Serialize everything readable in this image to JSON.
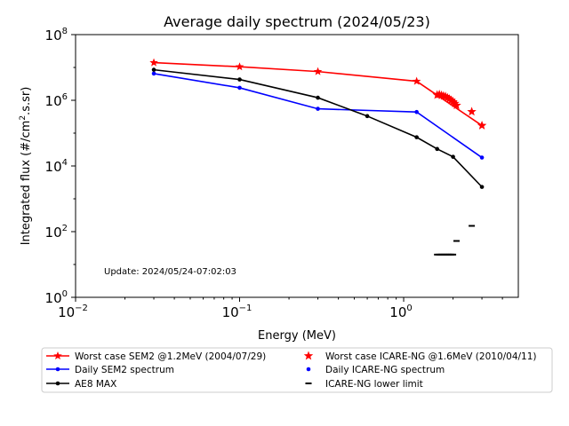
{
  "chart_data": {
    "type": "line",
    "title": "Average daily spectrum (2024/05/23)",
    "xlabel": "Energy (MeV)",
    "ylabel_main": "Integrated flux (#/cm",
    "ylabel_sup": "2",
    "ylabel_tail": ".s.sr)",
    "xscale": "log",
    "yscale": "log",
    "xlim": [
      0.01,
      5
    ],
    "ylim": [
      1,
      100000000
    ],
    "x_ticks": [
      {
        "value": 0.01,
        "base": "10",
        "exp": "−2"
      },
      {
        "value": 0.1,
        "base": "10",
        "exp": "−1"
      },
      {
        "value": 1,
        "base": "10",
        "exp": "0"
      }
    ],
    "y_ticks": [
      {
        "value": 1,
        "base": "10",
        "exp": "0"
      },
      {
        "value": 100,
        "base": "10",
        "exp": "2"
      },
      {
        "value": 10000,
        "base": "10",
        "exp": "4"
      },
      {
        "value": 1000000,
        "base": "10",
        "exp": "6"
      },
      {
        "value": 100000000,
        "base": "10",
        "exp": "8"
      }
    ],
    "annotation": "Update: 2024/05/24-07:02:03",
    "legend_placement": "below",
    "series": [
      {
        "name": "Worst case SEM2 @1.2MeV (2004/07/29)",
        "color": "#ff0000",
        "marker": "star",
        "style": "line",
        "x": [
          0.03,
          0.1,
          0.3,
          1.2,
          3.0
        ],
        "y": [
          14000000,
          10500000,
          7500000,
          3800000,
          170000
        ]
      },
      {
        "name": "Daily SEM2 spectrum",
        "color": "#0000ff",
        "marker": "dot",
        "style": "line",
        "x": [
          0.03,
          0.1,
          0.3,
          1.2,
          3.0
        ],
        "y": [
          6500000,
          2400000,
          550000,
          440000,
          18000
        ]
      },
      {
        "name": "AE8 MAX",
        "color": "#000000",
        "marker": "dot",
        "style": "line",
        "x": [
          0.03,
          0.1,
          0.3,
          0.6,
          1.2,
          1.6,
          2.0,
          3.0
        ],
        "y": [
          8500000,
          4300000,
          1200000,
          330000,
          75000,
          33000,
          19000,
          2300
        ]
      },
      {
        "name": "Worst case ICARE-NG @1.6MeV (2010/04/11)",
        "color": "#ff0000",
        "marker": "star",
        "style": "scatter",
        "x": [
          1.6,
          1.65,
          1.7,
          1.75,
          1.8,
          1.85,
          1.9,
          1.95,
          2.0,
          2.05,
          2.1,
          2.6,
          3.0
        ],
        "y": [
          1450000,
          1500000,
          1420000,
          1350000,
          1300000,
          1200000,
          1100000,
          1000000,
          900000,
          800000,
          700000,
          450000,
          170000
        ]
      },
      {
        "name": "Daily ICARE-NG spectrum",
        "color": "#0000ff",
        "marker": "dot",
        "style": "scatter",
        "x": [],
        "y": []
      },
      {
        "name": "ICARE-NG lower limit",
        "color": "#000000",
        "marker": "hline",
        "style": "scatter",
        "x": [
          1.6,
          1.65,
          1.7,
          1.75,
          1.8,
          1.85,
          1.9,
          1.95,
          2.0,
          2.1,
          2.6
        ],
        "y": [
          20,
          20,
          20,
          20,
          20,
          20,
          20,
          20,
          20,
          52,
          150
        ]
      }
    ]
  }
}
